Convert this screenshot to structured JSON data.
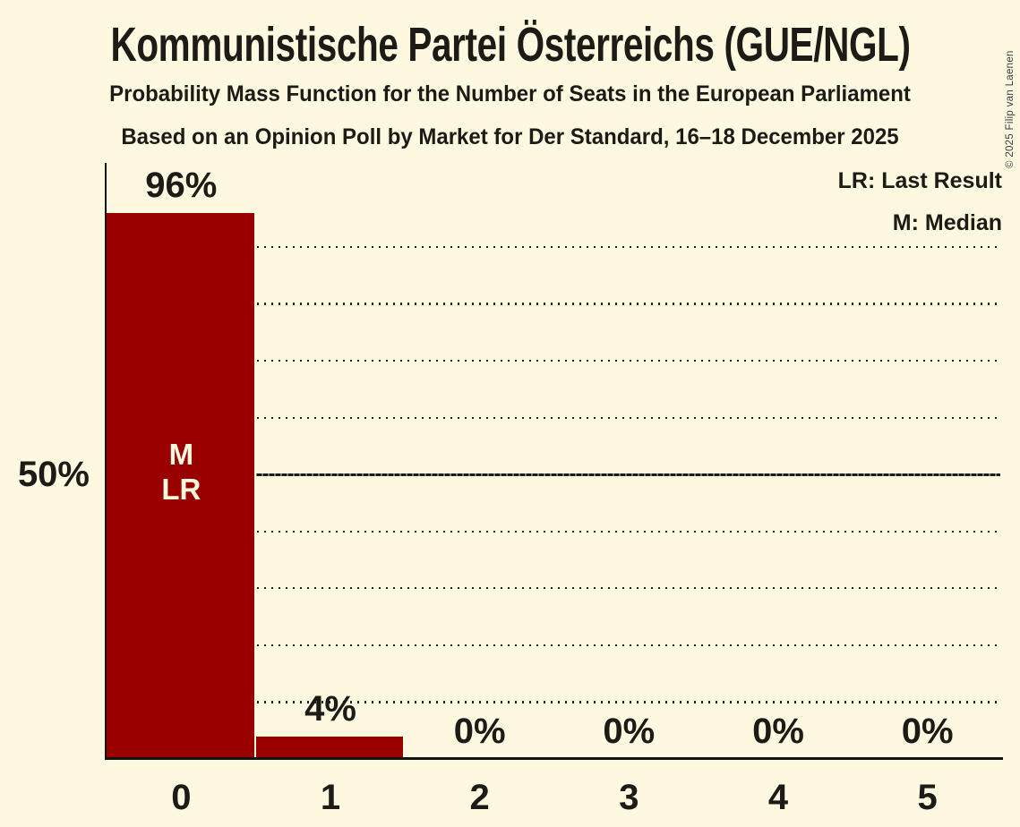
{
  "title": "Kommunistische Partei Österreichs (GUE/NGL)",
  "subtitle1": "Probability Mass Function for the Number of Seats in the European Parliament",
  "subtitle2": "Based on an Opinion Poll by Market for Der Standard, 16–18 December 2025",
  "legend": {
    "lr": "LR: Last Result",
    "m": "M: Median"
  },
  "copyright": "© 2025 Filip van Laenen",
  "colors": {
    "background": "#FDF9E0",
    "bar": "#990000",
    "text": "#1C1B16",
    "bar_text": "#FDF9E0",
    "gridline": "#26251D"
  },
  "chart_data": {
    "type": "bar",
    "categories": [
      "0",
      "1",
      "2",
      "3",
      "4",
      "5"
    ],
    "values": [
      96,
      4,
      0,
      0,
      0,
      0
    ],
    "value_labels": [
      "96%",
      "4%",
      "0%",
      "0%",
      "0%",
      "0%"
    ],
    "title": "Probability Mass Function for the Number of Seats in the European Parliament",
    "xlabel": "",
    "ylabel": "",
    "ylim": [
      0,
      104
    ],
    "y_axis": {
      "tick_value": 50,
      "tick_label": "50%",
      "gridline_interval": 10,
      "solid_gridline_at": 50,
      "gridline_style": "dotted"
    },
    "annotations": [
      {
        "category": "0",
        "lines": [
          "M",
          "LR"
        ]
      }
    ],
    "legend_position": "top-right",
    "bar_color": "#990000"
  }
}
